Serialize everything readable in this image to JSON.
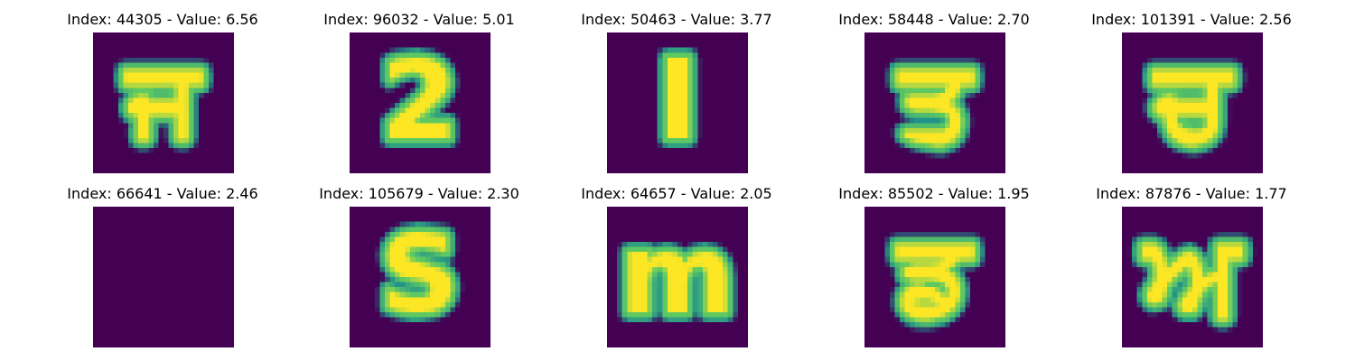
{
  "panels": [
    {
      "title": "Index: 44305 - Value: 6.56",
      "glyph": "ਜ",
      "angle": 0
    },
    {
      "title": "Index: 96032 - Value: 5.01",
      "glyph": "2",
      "angle": 0
    },
    {
      "title": "Index: 50463 - Value: 3.77",
      "glyph": "I",
      "angle": 0
    },
    {
      "title": "Index: 58448 - Value: 2.70",
      "glyph": "ਤ",
      "angle": 0
    },
    {
      "title": "Index: 101391 - Value: 2.56",
      "glyph": "ਚ",
      "angle": 0
    },
    {
      "title": "Index: 66641 - Value: 2.46",
      "glyph": "૖",
      "angle": 0
    },
    {
      "title": "Index: 105679 - Value: 2.30",
      "glyph": "S",
      "angle": 0
    },
    {
      "title": "Index: 64657 - Value: 2.05",
      "glyph": "m",
      "angle": 0
    },
    {
      "title": "Index: 85502 - Value: 1.95",
      "glyph": "ਡ",
      "angle": 0
    },
    {
      "title": "Index: 87876 - Value: 1.77",
      "glyph": "ਅ",
      "angle": 0
    }
  ],
  "colors": {
    "background": "#440154",
    "stroke_core": "#fde725",
    "stroke_mid": "#5ec962",
    "stroke_edge": "#21918c"
  }
}
